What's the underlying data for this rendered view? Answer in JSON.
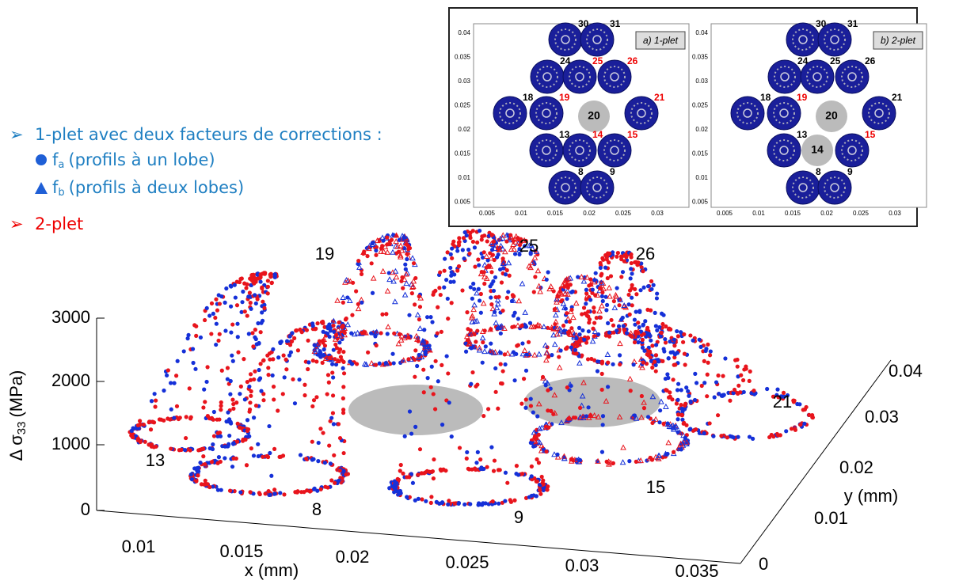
{
  "legend": {
    "one_plet": "1-plet avec deux facteurs de corrections :",
    "fa": {
      "symbol": "f",
      "sub": "a",
      "text": "(profils à un lobe)"
    },
    "fb": {
      "symbol": "f",
      "sub": "b",
      "text": "(profils à deux lobes)"
    },
    "two_plet": "2-plet"
  },
  "plot": {
    "z_label": {
      "main": "Δ σ",
      "sub": "33",
      "unit": "(MPa)"
    },
    "x_label": "x (mm)",
    "y_label": "y (mm)",
    "zticks": [
      "0",
      "1000",
      "2000",
      "3000"
    ],
    "xticks": [
      "0.01",
      "0.015",
      "0.02",
      "0.025",
      "0.03",
      "0.035"
    ],
    "yticks": [
      "0",
      "0.01",
      "0.02",
      "0.03",
      "0.04"
    ],
    "profile_labels": [
      "19",
      "25",
      "26",
      "13",
      "8",
      "9",
      "15",
      "21"
    ]
  },
  "insets": [
    {
      "tag": "a) 1-plet",
      "yticks": [
        "0.04",
        "0.035",
        "0.03",
        "0.025",
        "0.02",
        "0.015",
        "0.01",
        "0.005"
      ],
      "xticks": [
        "0.005",
        "0.01",
        "0.015",
        "0.02",
        "0.025",
        "0.03"
      ],
      "cells": [
        {
          "label": "30",
          "color": "#000",
          "kind": "fiber"
        },
        {
          "label": "31",
          "color": "#000",
          "kind": "fiber"
        },
        {
          "label": "24",
          "color": "#000",
          "kind": "fiber"
        },
        {
          "label": "25",
          "color": "#e00",
          "kind": "fiber"
        },
        {
          "label": "26",
          "color": "#e00",
          "kind": "fiber"
        },
        {
          "label": "18",
          "color": "#000",
          "kind": "fiber"
        },
        {
          "label": "19",
          "color": "#e00",
          "kind": "fiber"
        },
        {
          "label": "20",
          "color": "#000",
          "kind": "empty"
        },
        {
          "label": "21",
          "color": "#e00",
          "kind": "fiber"
        },
        {
          "label": "13",
          "color": "#000",
          "kind": "fiber"
        },
        {
          "label": "14",
          "color": "#e00",
          "kind": "fiber"
        },
        {
          "label": "15",
          "color": "#e00",
          "kind": "fiber"
        },
        {
          "label": "8",
          "color": "#000",
          "kind": "fiber"
        },
        {
          "label": "9",
          "color": "#000",
          "kind": "fiber"
        }
      ]
    },
    {
      "tag": "b) 2-plet",
      "yticks": [
        "0.04",
        "0.035",
        "0.03",
        "0.025",
        "0.02",
        "0.015",
        "0.01",
        "0.005"
      ],
      "xticks": [
        "0.005",
        "0.01",
        "0.015",
        "0.02",
        "0.025",
        "0.03"
      ],
      "cells": [
        {
          "label": "30",
          "color": "#000",
          "kind": "fiber"
        },
        {
          "label": "31",
          "color": "#000",
          "kind": "fiber"
        },
        {
          "label": "24",
          "color": "#000",
          "kind": "fiber"
        },
        {
          "label": "25",
          "color": "#000",
          "kind": "fiber"
        },
        {
          "label": "26",
          "color": "#000",
          "kind": "fiber"
        },
        {
          "label": "18",
          "color": "#000",
          "kind": "fiber"
        },
        {
          "label": "19",
          "color": "#e00",
          "kind": "fiber"
        },
        {
          "label": "20",
          "color": "#000",
          "kind": "empty"
        },
        {
          "label": "21",
          "color": "#000",
          "kind": "fiber"
        },
        {
          "label": "13",
          "color": "#000",
          "kind": "fiber"
        },
        {
          "label": "14",
          "color": "#000",
          "kind": "empty"
        },
        {
          "label": "15",
          "color": "#e00",
          "kind": "fiber"
        },
        {
          "label": "8",
          "color": "#000",
          "kind": "fiber"
        },
        {
          "label": "9",
          "color": "#000",
          "kind": "fiber"
        }
      ]
    }
  ]
}
